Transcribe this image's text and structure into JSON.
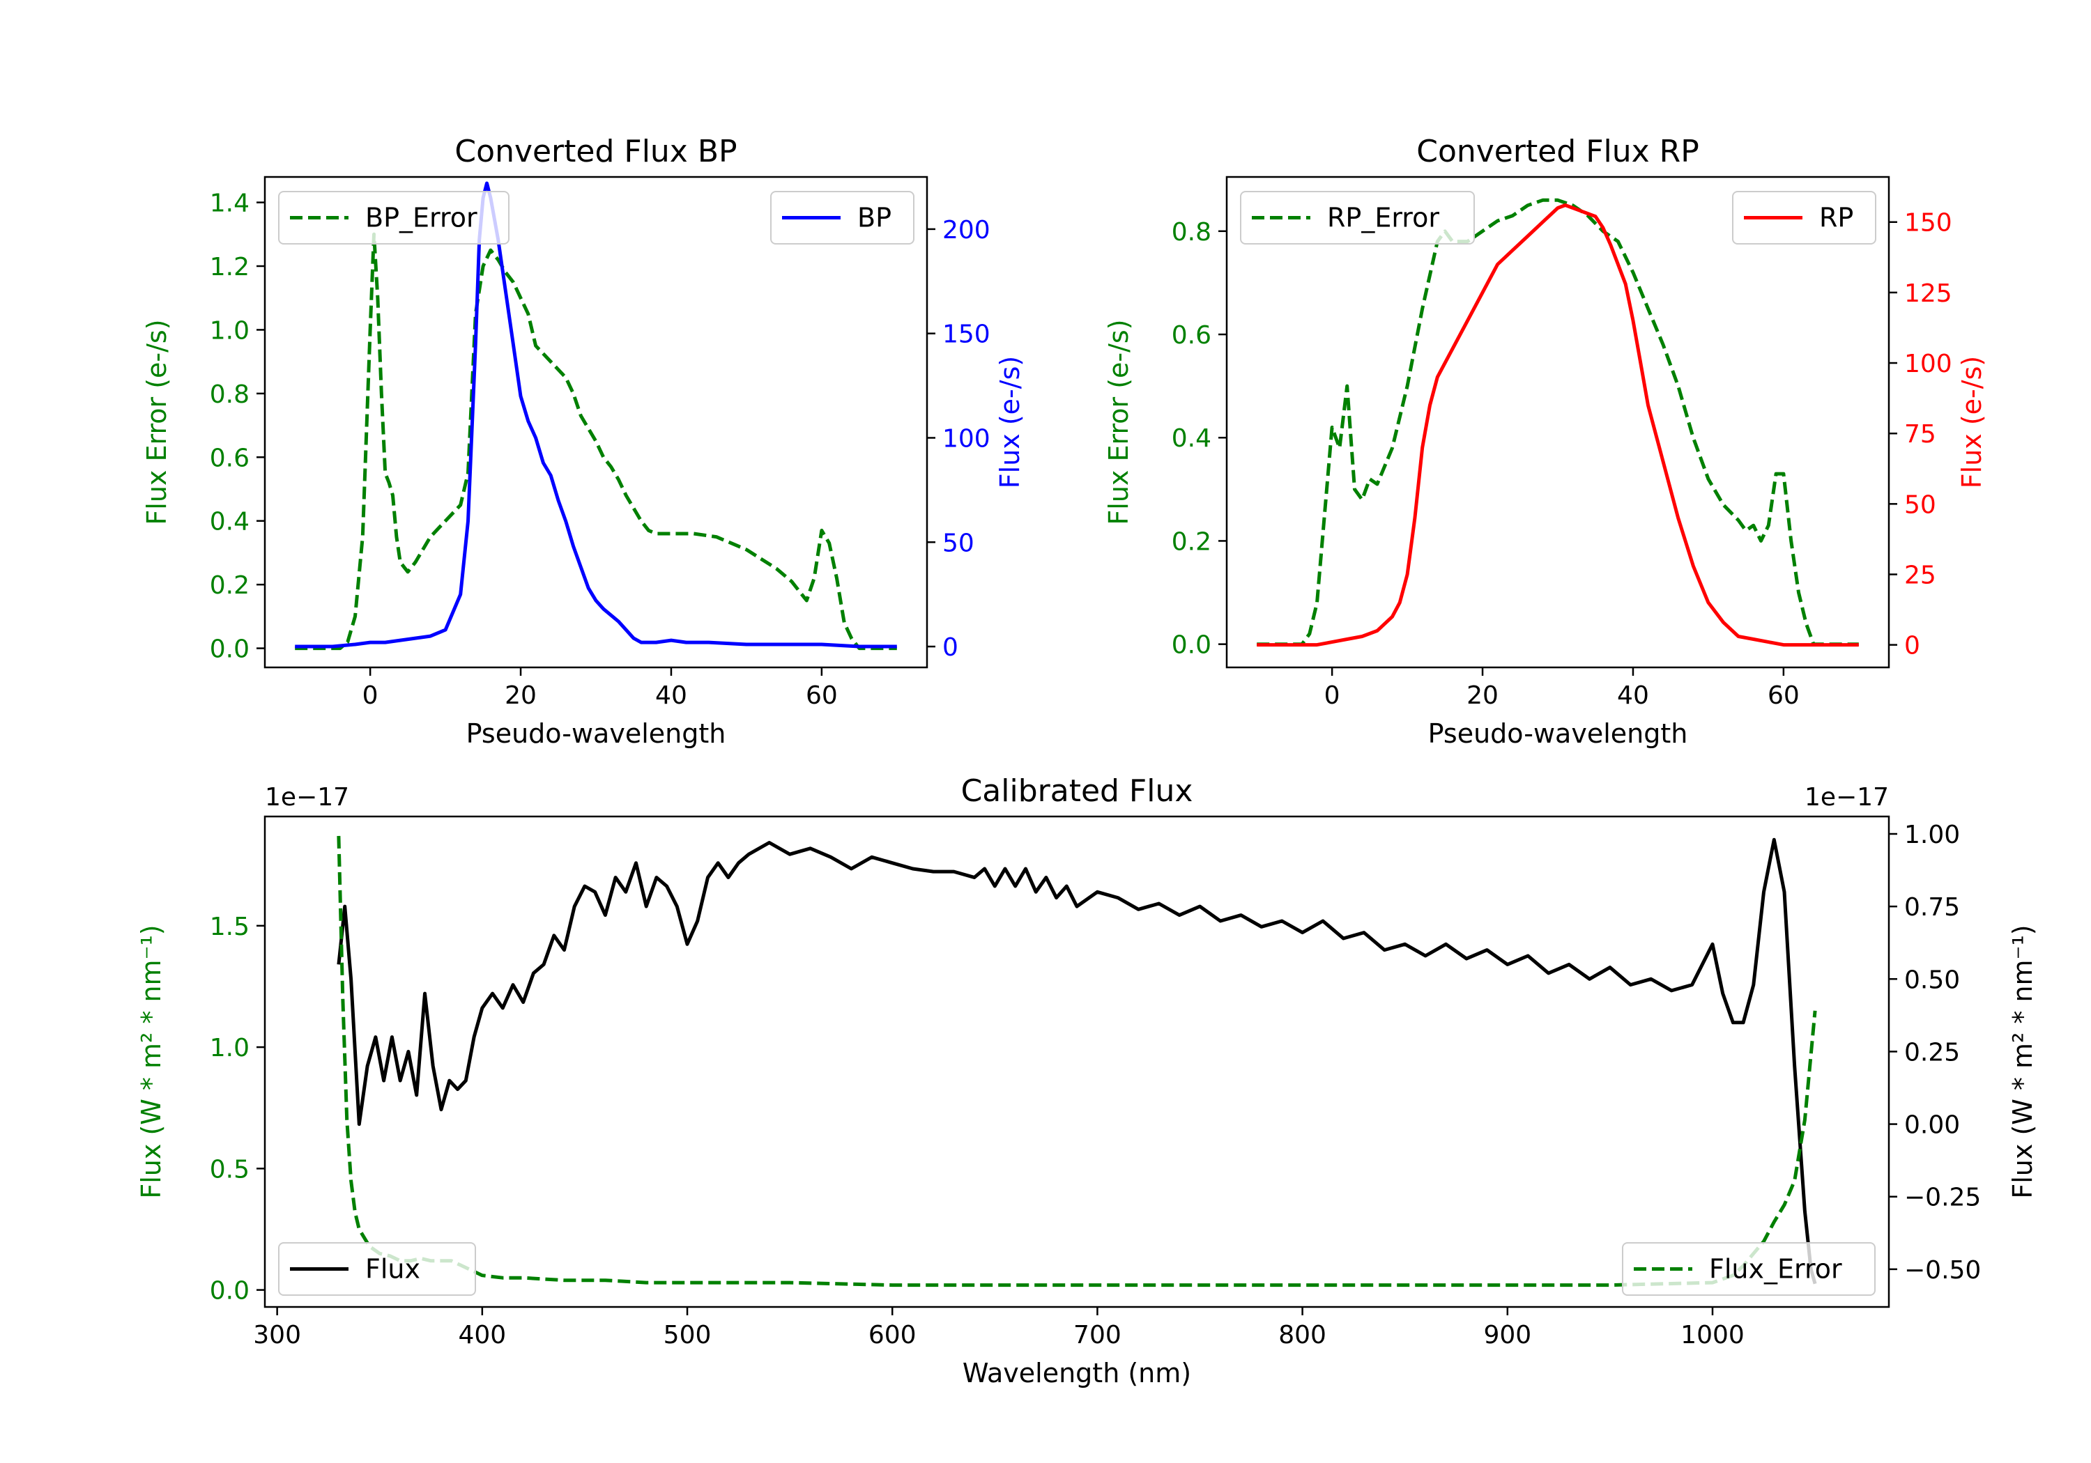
{
  "colors": {
    "green": "#008000",
    "blue": "#0000ff",
    "red": "#ff0000",
    "black": "#000000"
  },
  "chart_data": [
    {
      "id": "bp",
      "type": "line",
      "title": "Converted Flux BP",
      "xlabel": "Pseudo-wavelength",
      "ylabel_left": "Flux Error (e-/s)",
      "ylabel_right": "Flux (e-/s)",
      "xlim": [
        -14,
        74
      ],
      "ylim_left": [
        -0.06,
        1.48
      ],
      "ylim_right": [
        -10,
        225
      ],
      "xticks": [
        0,
        20,
        40,
        60
      ],
      "yticks_left": [
        0.0,
        0.2,
        0.4,
        0.6,
        0.8,
        1.0,
        1.2,
        1.4
      ],
      "yticks_left_labels": [
        "0.0",
        "0.2",
        "0.4",
        "0.6",
        "0.8",
        "1.0",
        "1.2",
        "1.4"
      ],
      "yticks_right": [
        0,
        50,
        100,
        150,
        200
      ],
      "yticks_right_labels": [
        "0",
        "50",
        "100",
        "150",
        "200"
      ],
      "series": [
        {
          "name": "BP_Error",
          "axis": "left",
          "color": "#008000",
          "style": "dashed",
          "x": [
            -10,
            -6,
            -4,
            -3,
            -2,
            -1,
            0,
            0.5,
            1,
            1.5,
            2,
            2.5,
            3,
            3.5,
            4,
            5,
            6,
            8,
            10,
            12,
            13,
            14,
            15,
            16,
            17,
            18,
            19,
            20,
            21,
            22,
            24,
            26,
            27,
            28,
            30,
            31,
            32,
            33,
            34,
            35,
            36,
            37,
            38,
            40,
            43,
            46,
            48,
            50,
            52,
            54,
            56,
            57,
            58,
            59,
            60,
            61,
            62,
            63,
            64,
            65,
            70
          ],
          "y": [
            0.0,
            0.0,
            0.0,
            0.02,
            0.1,
            0.35,
            1.0,
            1.3,
            1.1,
            0.8,
            0.55,
            0.52,
            0.48,
            0.35,
            0.27,
            0.24,
            0.27,
            0.35,
            0.4,
            0.45,
            0.55,
            1.05,
            1.2,
            1.25,
            1.22,
            1.18,
            1.15,
            1.1,
            1.05,
            0.95,
            0.9,
            0.85,
            0.8,
            0.73,
            0.65,
            0.6,
            0.57,
            0.53,
            0.48,
            0.44,
            0.4,
            0.37,
            0.36,
            0.36,
            0.36,
            0.35,
            0.33,
            0.31,
            0.28,
            0.25,
            0.21,
            0.18,
            0.15,
            0.22,
            0.37,
            0.33,
            0.22,
            0.08,
            0.03,
            0.0,
            0.0
          ]
        },
        {
          "name": "BP",
          "axis": "right",
          "color": "#0000ff",
          "style": "solid",
          "x": [
            -10,
            -5,
            -2,
            0,
            2,
            4,
            6,
            8,
            10,
            12,
            13,
            14,
            14.5,
            15,
            15.5,
            16,
            16.5,
            17,
            18,
            19,
            20,
            21,
            22,
            23,
            24,
            25,
            26,
            27,
            28,
            29,
            30,
            31,
            32,
            33,
            34,
            35,
            36,
            38,
            40,
            42,
            45,
            50,
            55,
            60,
            65,
            70
          ],
          "y": [
            0,
            0,
            1,
            2,
            2,
            3,
            4,
            5,
            8,
            25,
            60,
            145,
            195,
            215,
            222,
            215,
            205,
            195,
            170,
            145,
            120,
            108,
            100,
            88,
            82,
            70,
            60,
            48,
            38,
            28,
            22,
            18,
            15,
            12,
            8,
            4,
            2,
            2,
            3,
            2,
            2,
            1,
            1,
            1,
            0,
            0
          ]
        }
      ],
      "legend": [
        {
          "label": "BP_Error",
          "position": "upper-left"
        },
        {
          "label": "BP",
          "position": "upper-right"
        }
      ]
    },
    {
      "id": "rp",
      "type": "line",
      "title": "Converted Flux RP",
      "xlabel": "Pseudo-wavelength",
      "ylabel_left": "Flux Error (e-/s)",
      "ylabel_right": "Flux (e-/s)",
      "xlim": [
        -14,
        74
      ],
      "ylim_left": [
        -0.045,
        0.905
      ],
      "ylim_right": [
        -8,
        166
      ],
      "xticks": [
        0,
        20,
        40,
        60
      ],
      "yticks_left": [
        0.0,
        0.2,
        0.4,
        0.6,
        0.8
      ],
      "yticks_left_labels": [
        "0.0",
        "0.2",
        "0.4",
        "0.6",
        "0.8"
      ],
      "yticks_right": [
        0,
        25,
        50,
        75,
        100,
        125,
        150
      ],
      "yticks_right_labels": [
        "0",
        "25",
        "50",
        "75",
        "100",
        "125",
        "150"
      ],
      "series": [
        {
          "name": "RP_Error",
          "axis": "left",
          "color": "#008000",
          "style": "dashed",
          "x": [
            -10,
            -5,
            -4,
            -3,
            -2,
            -1,
            0,
            1,
            2,
            3,
            4,
            5,
            6,
            8,
            10,
            12,
            14,
            15,
            16,
            18,
            20,
            22,
            24,
            26,
            28,
            30,
            32,
            34,
            36,
            38,
            40,
            42,
            44,
            46,
            48,
            50,
            52,
            54,
            55,
            56,
            57,
            58,
            59,
            60,
            61,
            62,
            63,
            64,
            65,
            70
          ],
          "y": [
            0.0,
            0.0,
            0.0,
            0.02,
            0.08,
            0.25,
            0.42,
            0.38,
            0.5,
            0.3,
            0.28,
            0.32,
            0.31,
            0.38,
            0.5,
            0.65,
            0.78,
            0.8,
            0.78,
            0.78,
            0.8,
            0.82,
            0.83,
            0.85,
            0.86,
            0.86,
            0.85,
            0.83,
            0.8,
            0.78,
            0.72,
            0.65,
            0.58,
            0.5,
            0.4,
            0.32,
            0.27,
            0.24,
            0.22,
            0.23,
            0.2,
            0.23,
            0.33,
            0.33,
            0.2,
            0.1,
            0.04,
            0.0,
            0.0,
            0.0
          ]
        },
        {
          "name": "RP",
          "axis": "right",
          "color": "#ff0000",
          "style": "solid",
          "x": [
            -10,
            -5,
            -2,
            0,
            2,
            4,
            6,
            8,
            9,
            10,
            11,
            12,
            13,
            14,
            16,
            18,
            20,
            22,
            24,
            26,
            28,
            30,
            31,
            32,
            33,
            34,
            35,
            36,
            37,
            38,
            39,
            40,
            41,
            42,
            44,
            46,
            48,
            50,
            52,
            54,
            56,
            58,
            60,
            62,
            65,
            70
          ],
          "y": [
            0,
            0,
            0,
            1,
            2,
            3,
            5,
            10,
            15,
            25,
            45,
            70,
            85,
            95,
            105,
            115,
            125,
            135,
            140,
            145,
            150,
            155,
            156,
            155,
            154,
            153,
            152,
            148,
            142,
            135,
            128,
            115,
            100,
            85,
            65,
            45,
            28,
            15,
            8,
            3,
            2,
            1,
            0,
            0,
            0,
            0
          ]
        }
      ],
      "legend": [
        {
          "label": "RP_Error",
          "position": "upper-left"
        },
        {
          "label": "RP",
          "position": "upper-right"
        }
      ]
    },
    {
      "id": "cal",
      "type": "line",
      "title": "Calibrated Flux",
      "xlabel": "Wavelength (nm)",
      "ylabel_left": "Flux (W * m² * nm⁻¹)",
      "ylabel_right": "Flux (W * m² * nm⁻¹)",
      "offset_left": "1e−17",
      "offset_right": "1e−17",
      "xlim": [
        294,
        1086
      ],
      "ylim_left": [
        -0.07,
        1.95
      ],
      "ylim_right": [
        -0.63,
        1.06
      ],
      "xticks": [
        300,
        400,
        500,
        600,
        700,
        800,
        900,
        1000
      ],
      "yticks_left": [
        0.0,
        0.5,
        1.0,
        1.5
      ],
      "yticks_left_labels": [
        "0.0",
        "0.5",
        "1.0",
        "1.5"
      ],
      "yticks_right": [
        -0.5,
        -0.25,
        0.0,
        0.25,
        0.5,
        0.75,
        1.0
      ],
      "yticks_right_labels": [
        "−0.50",
        "−0.25",
        "0.00",
        "0.25",
        "0.50",
        "0.75",
        "1.00"
      ],
      "series": [
        {
          "name": "Flux",
          "axis": "right",
          "color": "#000000",
          "style": "solid",
          "x": [
            330,
            333,
            336,
            340,
            344,
            348,
            352,
            356,
            360,
            364,
            368,
            372,
            376,
            380,
            384,
            388,
            392,
            396,
            400,
            405,
            410,
            415,
            420,
            425,
            430,
            435,
            440,
            445,
            450,
            455,
            460,
            465,
            470,
            475,
            480,
            485,
            490,
            495,
            500,
            505,
            510,
            515,
            520,
            525,
            530,
            540,
            550,
            560,
            570,
            580,
            590,
            600,
            610,
            620,
            630,
            640,
            645,
            650,
            655,
            660,
            665,
            670,
            675,
            680,
            685,
            690,
            700,
            710,
            720,
            730,
            740,
            750,
            760,
            770,
            780,
            790,
            800,
            810,
            820,
            830,
            840,
            850,
            860,
            870,
            880,
            890,
            900,
            910,
            920,
            930,
            940,
            950,
            960,
            970,
            980,
            990,
            1000,
            1005,
            1010,
            1015,
            1020,
            1025,
            1030,
            1035,
            1040,
            1045,
            1048,
            1050
          ],
          "y": [
            0.55,
            0.75,
            0.5,
            0.0,
            0.2,
            0.3,
            0.15,
            0.3,
            0.15,
            0.25,
            0.1,
            0.45,
            0.2,
            0.05,
            0.15,
            0.12,
            0.15,
            0.3,
            0.4,
            0.45,
            0.4,
            0.48,
            0.42,
            0.52,
            0.55,
            0.65,
            0.6,
            0.75,
            0.82,
            0.8,
            0.72,
            0.85,
            0.8,
            0.9,
            0.75,
            0.85,
            0.82,
            0.75,
            0.62,
            0.7,
            0.85,
            0.9,
            0.85,
            0.9,
            0.93,
            0.97,
            0.93,
            0.95,
            0.92,
            0.88,
            0.92,
            0.9,
            0.88,
            0.87,
            0.87,
            0.85,
            0.88,
            0.82,
            0.88,
            0.82,
            0.88,
            0.8,
            0.85,
            0.78,
            0.82,
            0.75,
            0.8,
            0.78,
            0.74,
            0.76,
            0.72,
            0.75,
            0.7,
            0.72,
            0.68,
            0.7,
            0.66,
            0.7,
            0.64,
            0.66,
            0.6,
            0.62,
            0.58,
            0.62,
            0.57,
            0.6,
            0.55,
            0.58,
            0.52,
            0.55,
            0.5,
            0.54,
            0.48,
            0.5,
            0.46,
            0.48,
            0.62,
            0.45,
            0.35,
            0.35,
            0.48,
            0.8,
            0.98,
            0.8,
            0.2,
            -0.3,
            -0.5,
            -0.55
          ]
        },
        {
          "name": "Flux_Error",
          "axis": "left",
          "color": "#008000",
          "style": "dashed",
          "x": [
            330,
            332,
            334,
            336,
            338,
            340,
            345,
            350,
            355,
            360,
            365,
            370,
            375,
            380,
            385,
            390,
            395,
            400,
            410,
            420,
            440,
            460,
            480,
            500,
            550,
            600,
            650,
            700,
            750,
            800,
            850,
            900,
            950,
            1000,
            1010,
            1015,
            1020,
            1025,
            1030,
            1035,
            1040,
            1045,
            1050
          ],
          "y": [
            1.87,
            1.2,
            0.7,
            0.45,
            0.32,
            0.25,
            0.18,
            0.15,
            0.14,
            0.12,
            0.12,
            0.13,
            0.12,
            0.12,
            0.12,
            0.1,
            0.08,
            0.06,
            0.05,
            0.05,
            0.04,
            0.04,
            0.03,
            0.03,
            0.03,
            0.02,
            0.02,
            0.02,
            0.02,
            0.02,
            0.02,
            0.02,
            0.02,
            0.03,
            0.06,
            0.1,
            0.15,
            0.2,
            0.28,
            0.35,
            0.45,
            0.7,
            1.15
          ]
        }
      ],
      "legend": [
        {
          "label": "Flux",
          "position": "lower-left"
        },
        {
          "label": "Flux_Error",
          "position": "lower-right"
        }
      ]
    }
  ]
}
